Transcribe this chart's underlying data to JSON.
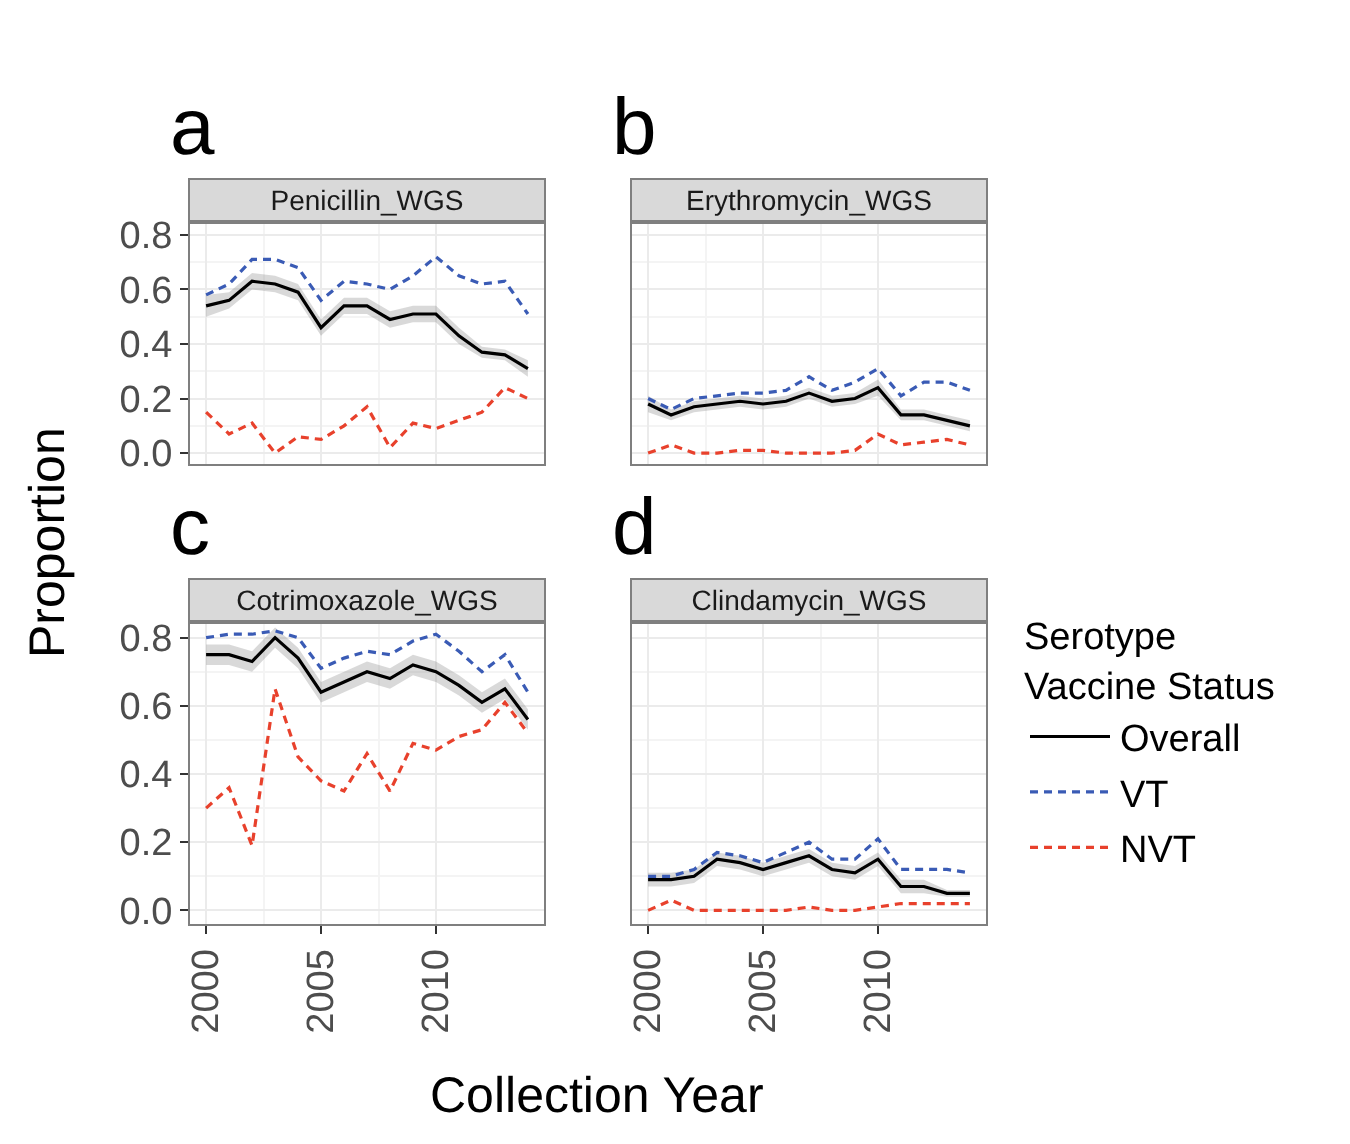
{
  "chart_data": [
    {
      "type": "line",
      "title": "a",
      "subtitle": "Penicillin_WGS",
      "ylabel": "Proportion",
      "legend_title": "Serotype\nVaccine Status",
      "legend": "right",
      "x": [
        2000,
        2001,
        2002,
        2003,
        2004,
        2005,
        2006,
        2007,
        2008,
        2009,
        2010,
        2011,
        2012,
        2013,
        2014
      ],
      "xlim": [
        1999.3,
        2014.7
      ],
      "xticks": [
        2000,
        2005,
        2010
      ],
      "ylim": [
        -0.04,
        0.84
      ],
      "yticks": [
        {
          "value": 0,
          "label": "0.0"
        },
        0.2,
        0.4,
        0.6,
        0.8
      ],
      "grid": true,
      "tick_labels": "y",
      "series": [
        {
          "name": "Overall",
          "color": "#000000",
          "line_style": "solid",
          "values": [
            0.54,
            0.56,
            0.63,
            0.62,
            0.59,
            0.46,
            0.54,
            0.54,
            0.49,
            0.51,
            0.51,
            0.43,
            0.37,
            0.36,
            0.31
          ],
          "lower": [
            0.5,
            0.53,
            0.6,
            0.59,
            0.56,
            0.43,
            0.51,
            0.51,
            0.46,
            0.48,
            0.48,
            0.4,
            0.35,
            0.34,
            0.28
          ],
          "upper": [
            0.58,
            0.59,
            0.66,
            0.65,
            0.62,
            0.49,
            0.57,
            0.57,
            0.52,
            0.54,
            0.54,
            0.46,
            0.39,
            0.38,
            0.34
          ]
        },
        {
          "name": "VT",
          "color": "#3a5bb5",
          "line_style": "dashed",
          "values": [
            0.58,
            0.62,
            0.71,
            0.71,
            0.68,
            0.56,
            0.63,
            0.62,
            0.6,
            0.65,
            0.72,
            0.65,
            0.62,
            0.63,
            0.51
          ]
        },
        {
          "name": "NVT",
          "color": "#e8412c",
          "line_style": "dashed",
          "values": [
            0.15,
            0.07,
            0.11,
            0.0,
            0.06,
            0.05,
            0.1,
            0.17,
            0.02,
            0.11,
            0.09,
            0.12,
            0.15,
            0.24,
            0.2
          ]
        }
      ]
    },
    {
      "type": "line",
      "title": "b",
      "subtitle": "Erythromycin_WGS",
      "x": [
        2000,
        2001,
        2002,
        2003,
        2004,
        2005,
        2006,
        2007,
        2008,
        2009,
        2010,
        2011,
        2012,
        2013,
        2014
      ],
      "xlim": [
        1999.3,
        2014.7
      ],
      "xticks": [
        2000,
        2005,
        2010
      ],
      "ylim": [
        -0.04,
        0.84
      ],
      "yticks": [
        0,
        0.2,
        0.4,
        0.6,
        0.8
      ],
      "grid": true,
      "tick_labels": false,
      "series": [
        {
          "color": "#000000",
          "line_style": "solid",
          "values": [
            0.18,
            0.14,
            0.17,
            0.18,
            0.19,
            0.18,
            0.19,
            0.22,
            0.19,
            0.2,
            0.24,
            0.14,
            0.14,
            0.12,
            0.1
          ],
          "lower": [
            0.15,
            0.12,
            0.15,
            0.16,
            0.17,
            0.16,
            0.17,
            0.2,
            0.17,
            0.18,
            0.21,
            0.12,
            0.12,
            0.1,
            0.08
          ],
          "upper": [
            0.21,
            0.16,
            0.19,
            0.2,
            0.21,
            0.2,
            0.21,
            0.24,
            0.21,
            0.22,
            0.27,
            0.16,
            0.16,
            0.14,
            0.12
          ]
        },
        {
          "color": "#3a5bb5",
          "line_style": "dashed",
          "values": [
            0.2,
            0.16,
            0.2,
            0.21,
            0.22,
            0.22,
            0.23,
            0.28,
            0.23,
            0.26,
            0.31,
            0.21,
            0.26,
            0.26,
            0.23
          ]
        },
        {
          "color": "#e8412c",
          "line_style": "dashed",
          "values": [
            0.0,
            0.03,
            0.0,
            0.0,
            0.01,
            0.01,
            0.0,
            0.0,
            0.0,
            0.01,
            0.07,
            0.03,
            0.04,
            0.05,
            0.03
          ]
        }
      ]
    },
    {
      "type": "line",
      "title": "c",
      "subtitle": "Cotrimoxazole_WGS",
      "xlabel": "Collection Year",
      "x": [
        2000,
        2001,
        2002,
        2003,
        2004,
        2005,
        2006,
        2007,
        2008,
        2009,
        2010,
        2011,
        2012,
        2013,
        2014
      ],
      "xlim": [
        1999.3,
        2014.7
      ],
      "xticks": [
        2000,
        2005,
        2010
      ],
      "ylim": [
        -0.04,
        0.84
      ],
      "yticks": [
        {
          "value": 0,
          "label": "0.0"
        },
        0.2,
        0.4,
        0.6,
        0.8
      ],
      "grid": true,
      "series": [
        {
          "color": "#000000",
          "line_style": "solid",
          "values": [
            0.75,
            0.75,
            0.73,
            0.8,
            0.74,
            0.64,
            0.67,
            0.7,
            0.68,
            0.72,
            0.7,
            0.66,
            0.61,
            0.65,
            0.56
          ],
          "lower": [
            0.72,
            0.72,
            0.7,
            0.77,
            0.71,
            0.61,
            0.64,
            0.67,
            0.65,
            0.69,
            0.67,
            0.63,
            0.58,
            0.62,
            0.53
          ],
          "upper": [
            0.78,
            0.78,
            0.76,
            0.83,
            0.77,
            0.67,
            0.7,
            0.73,
            0.71,
            0.75,
            0.73,
            0.69,
            0.64,
            0.68,
            0.59
          ]
        },
        {
          "color": "#3a5bb5",
          "line_style": "dashed",
          "values": [
            0.8,
            0.81,
            0.81,
            0.82,
            0.8,
            0.71,
            0.74,
            0.76,
            0.75,
            0.79,
            0.81,
            0.76,
            0.7,
            0.75,
            0.64
          ]
        },
        {
          "color": "#e8412c",
          "line_style": "dashed",
          "values": [
            0.3,
            0.36,
            0.19,
            0.65,
            0.45,
            0.38,
            0.35,
            0.46,
            0.35,
            0.49,
            0.47,
            0.51,
            0.53,
            0.61,
            0.52
          ]
        }
      ]
    },
    {
      "type": "line",
      "title": "d",
      "subtitle": "Clindamycin_WGS",
      "x": [
        2000,
        2001,
        2002,
        2003,
        2004,
        2005,
        2006,
        2007,
        2008,
        2009,
        2010,
        2011,
        2012,
        2013,
        2014
      ],
      "xlim": [
        1999.3,
        2014.7
      ],
      "xticks": [
        2000,
        2005,
        2010
      ],
      "ylim": [
        -0.04,
        0.84
      ],
      "yticks": [
        0,
        0.2,
        0.4,
        0.6,
        0.8
      ],
      "grid": true,
      "tick_labels": "x",
      "series": [
        {
          "color": "#000000",
          "line_style": "solid",
          "values": [
            0.09,
            0.09,
            0.1,
            0.15,
            0.14,
            0.12,
            0.14,
            0.16,
            0.12,
            0.11,
            0.15,
            0.07,
            0.07,
            0.05,
            0.05
          ],
          "lower": [
            0.07,
            0.07,
            0.08,
            0.13,
            0.12,
            0.1,
            0.12,
            0.14,
            0.1,
            0.09,
            0.13,
            0.05,
            0.05,
            0.04,
            0.04
          ],
          "upper": [
            0.11,
            0.11,
            0.12,
            0.17,
            0.16,
            0.14,
            0.16,
            0.18,
            0.14,
            0.13,
            0.17,
            0.09,
            0.09,
            0.06,
            0.06
          ]
        },
        {
          "color": "#3a5bb5",
          "line_style": "dashed",
          "values": [
            0.1,
            0.1,
            0.12,
            0.17,
            0.16,
            0.14,
            0.17,
            0.2,
            0.15,
            0.15,
            0.21,
            0.12,
            0.12,
            0.12,
            0.11
          ]
        },
        {
          "color": "#e8412c",
          "line_style": "dashed",
          "values": [
            0.0,
            0.03,
            0.0,
            0.0,
            0.0,
            0.0,
            0.0,
            0.01,
            0.0,
            0.0,
            0.01,
            0.02,
            0.02,
            0.02,
            0.02
          ]
        }
      ]
    }
  ]
}
